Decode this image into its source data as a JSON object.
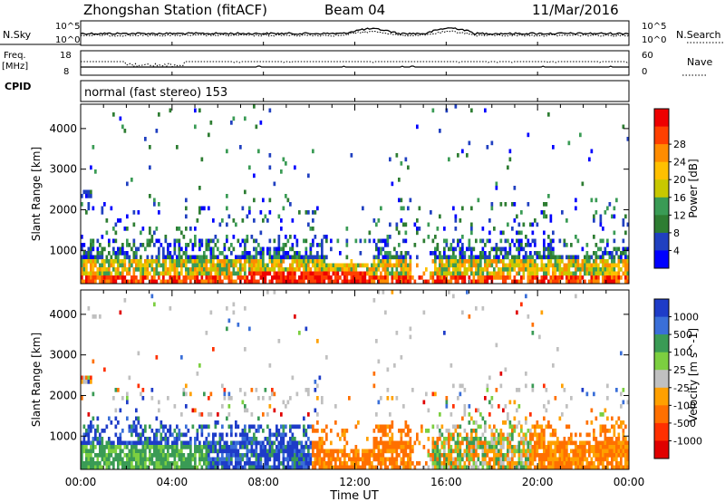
{
  "header": {
    "station": "Zhongshan Station (fitACF)",
    "beam": "Beam 04",
    "date": "11/Mar/2016"
  },
  "strip_nsky": {
    "left_label": "N.Sky",
    "right_label": "N.Search",
    "left_ticks": [
      "10^5",
      "10^0"
    ],
    "right_ticks": [
      "10^5",
      "10^0"
    ]
  },
  "strip_freq": {
    "left_label": "Freq.",
    "left_unit": "[MHz]",
    "right_label": "Nave",
    "left_ticks": [
      "18",
      "8"
    ],
    "right_ticks": [
      "60",
      "0"
    ]
  },
  "cpid": {
    "label": "CPID",
    "mode": "normal (fast stereo) 153"
  },
  "chart_data": [
    {
      "type": "heatmap",
      "name": "power",
      "ylabel": "Slant Range [km]",
      "xlabel": "",
      "x_ticks": [
        "00:00",
        "04:00",
        "08:00",
        "12:00",
        "16:00",
        "20:00",
        "00:00"
      ],
      "y_ticks": [
        "1000",
        "2000",
        "3000",
        "4000"
      ],
      "ylim": [
        180,
        4600
      ],
      "colorbar": {
        "label": "Power [dB]",
        "ticks": [
          "4",
          "8",
          "12",
          "16",
          "20",
          "24",
          "28"
        ],
        "range": [
          0,
          30
        ],
        "colors": [
          "#0000ff",
          "#2040c0",
          "#2e7d32",
          "#3a9b55",
          "#c8c800",
          "#ffc000",
          "#ff8c00",
          "#ff4000",
          "#ee0000"
        ]
      }
    },
    {
      "type": "heatmap",
      "name": "velocity",
      "ylabel": "Slant Range [km]",
      "xlabel": "Time UT",
      "x_ticks": [
        "00:00",
        "04:00",
        "08:00",
        "12:00",
        "16:00",
        "20:00",
        "00:00"
      ],
      "y_ticks": [
        "1000",
        "2000",
        "3000",
        "4000"
      ],
      "ylim": [
        180,
        4600
      ],
      "colorbar": {
        "label": "Velocity [m s^-1]",
        "ticks": [
          "1000",
          "500",
          "100",
          "25",
          "-25",
          "-100",
          "-500",
          "-1000"
        ],
        "colors": [
          "#1e3cc8",
          "#3a6fd8",
          "#3a9b55",
          "#7ccf40",
          "#c0c0c0",
          "#ffa000",
          "#ff7000",
          "#ff3000",
          "#e00000"
        ]
      }
    }
  ]
}
